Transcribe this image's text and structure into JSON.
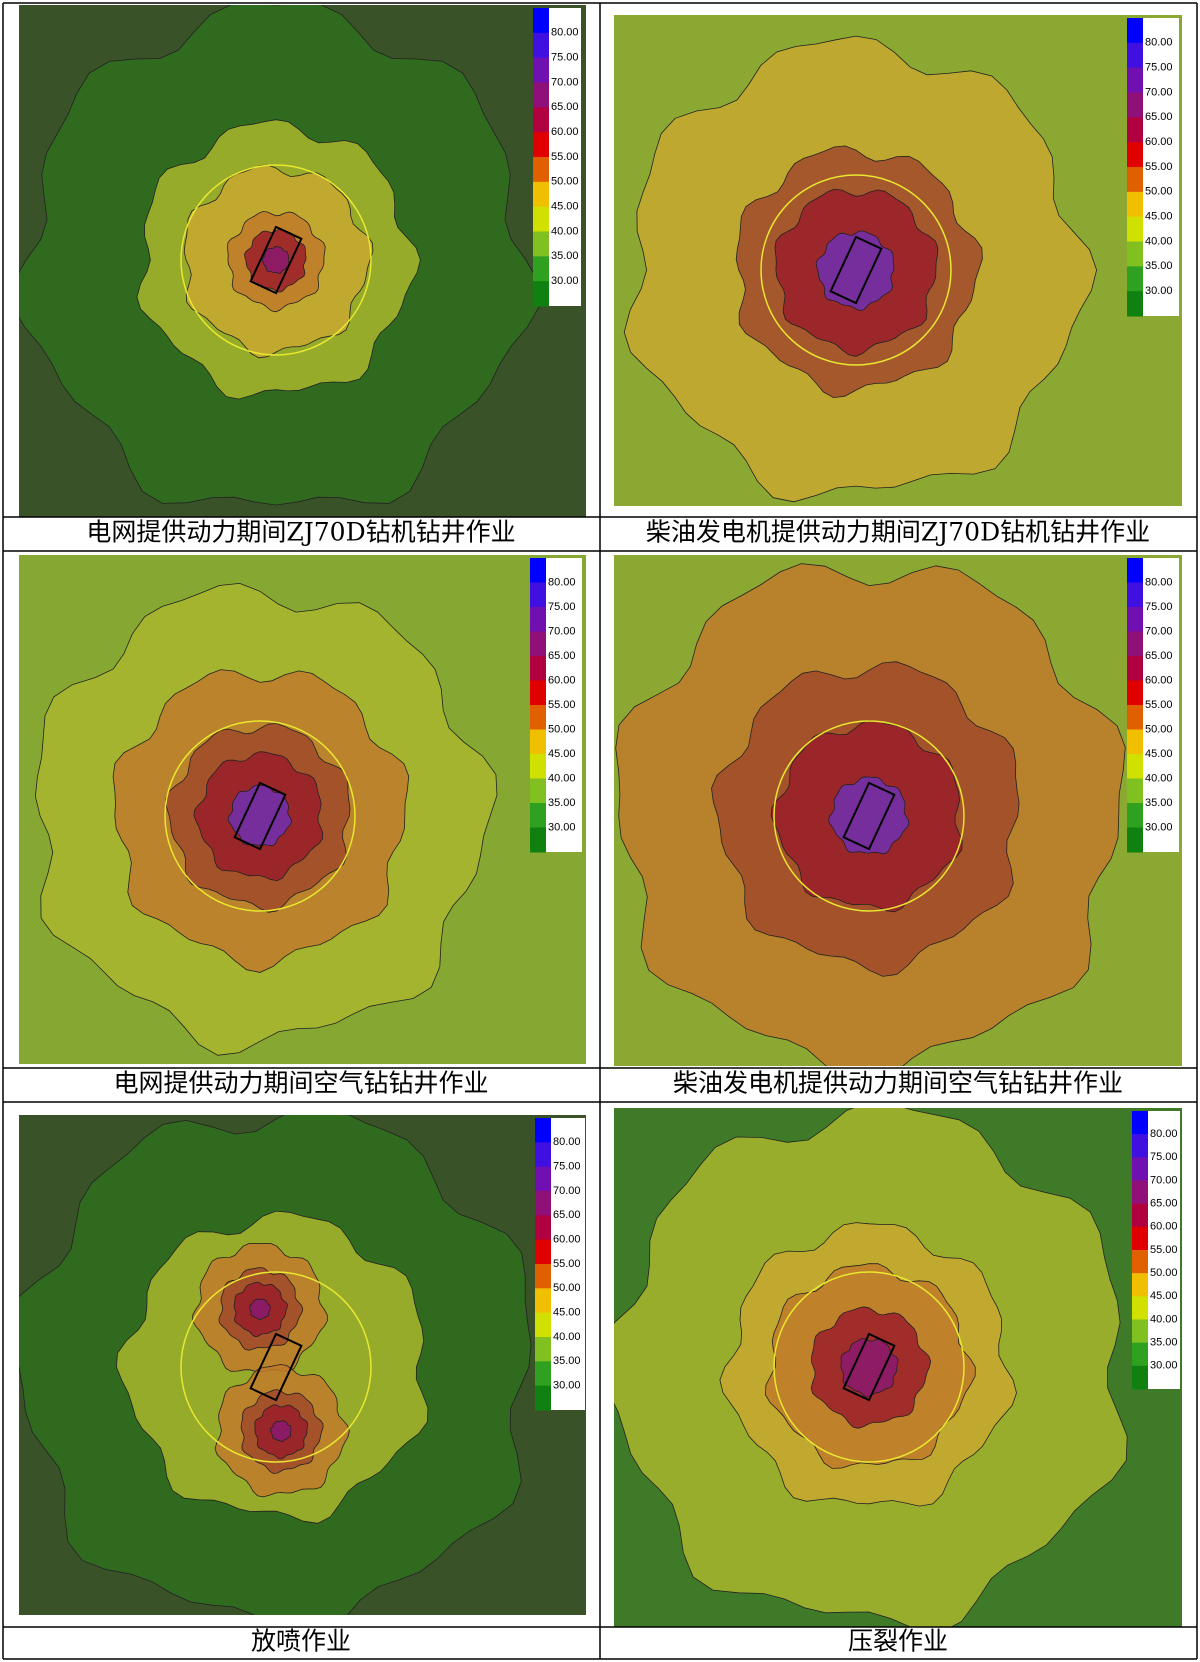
{
  "panels": [
    {
      "caption": "电网提供动力期间ZJ70D钻机钻井作业"
    },
    {
      "caption": "柴油发电机提供动力期间ZJ70D钻机钻井作业"
    },
    {
      "caption": "电网提供动力期间空气钻钻井作业"
    },
    {
      "caption": "柴油发电机提供动力期间空气钻钻井作业"
    },
    {
      "caption": "放喷作业"
    },
    {
      "caption": "压裂作业"
    }
  ],
  "legend": {
    "labels": [
      "80.00",
      "75.00",
      "70.00",
      "65.00",
      "60.00",
      "55.00",
      "50.00",
      "45.00",
      "40.00",
      "35.00",
      "30.00"
    ]
  }
}
